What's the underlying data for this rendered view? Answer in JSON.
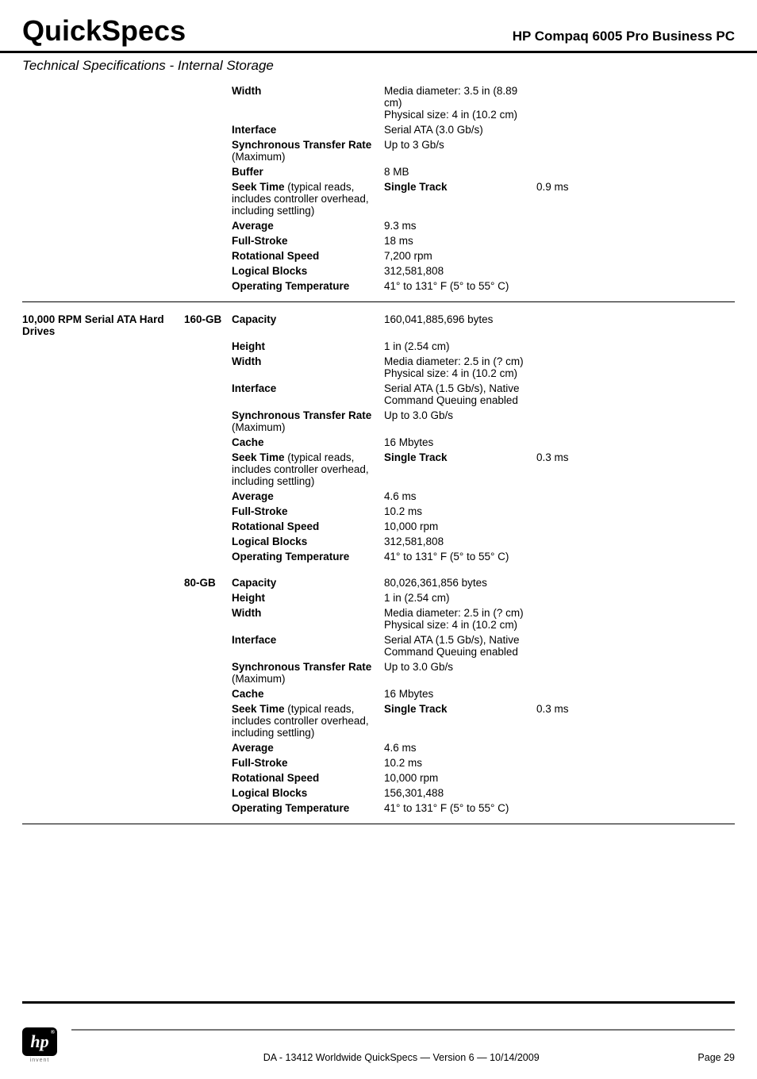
{
  "header": {
    "title": "QuickSpecs",
    "subtitle": "HP Compaq 6005 Pro Business PC"
  },
  "section_title": "Technical Specifications - Internal Storage",
  "drive1": {
    "width_label": "Width",
    "width_value": "Media diameter: 3.5 in (8.89 cm)\nPhysical size: 4 in (10.2 cm)",
    "interface_label": "Interface",
    "interface_value": "Serial ATA (3.0 Gb/s)",
    "sync_label": "Synchronous Transfer Rate",
    "sync_paren": " (Maximum)",
    "sync_value": "Up to 3 Gb/s",
    "buffer_label": "Buffer",
    "buffer_value": "8 MB",
    "seek_label": "Seek Time",
    "seek_paren": " (typical reads, includes controller overhead, including settling)",
    "seek_single": "Single Track",
    "seek_single_val": "0.9 ms",
    "seek_avg": "Average",
    "seek_avg_val": "9.3 ms",
    "seek_full": "Full-Stroke",
    "seek_full_val": "18 ms",
    "rot_label": "Rotational Speed",
    "rot_value": "7,200 rpm",
    "blocks_label": "Logical Blocks",
    "blocks_value": "312,581,808",
    "temp_label": "Operating Temperature",
    "temp_value": "41° to 131° F (5° to 55° C)"
  },
  "section2_name": "10,000 RPM Serial ATA Hard Drives",
  "drive2": {
    "size_label": "160-GB",
    "capacity_label": "Capacity",
    "capacity_value": "160,041,885,696 bytes",
    "height_label": "Height",
    "height_value": "1 in (2.54 cm)",
    "width_label": "Width",
    "width_value": "Media diameter: 2.5 in (? cm)\nPhysical size: 4 in (10.2 cm)",
    "interface_label": "Interface",
    "interface_value": "Serial ATA (1.5 Gb/s), Native Command Queuing enabled",
    "sync_label": "Synchronous Transfer Rate",
    "sync_paren": " (Maximum)",
    "sync_value": "Up to 3.0 Gb/s",
    "cache_label": "Cache",
    "cache_value": "16 Mbytes",
    "seek_label": "Seek Time",
    "seek_paren": " (typical reads, includes controller overhead, including settling)",
    "seek_single": "Single Track",
    "seek_single_val": "0.3 ms",
    "seek_avg": "Average",
    "seek_avg_val": "4.6 ms",
    "seek_full": "Full-Stroke",
    "seek_full_val": "10.2 ms",
    "rot_label": "Rotational Speed",
    "rot_value": "10,000 rpm",
    "blocks_label": "Logical Blocks",
    "blocks_value": "312,581,808",
    "temp_label": "Operating Temperature",
    "temp_value": "41° to 131° F (5° to 55° C)"
  },
  "drive3": {
    "size_label": "80-GB",
    "capacity_label": "Capacity",
    "capacity_value": "80,026,361,856 bytes",
    "height_label": "Height",
    "height_value": "1 in (2.54 cm)",
    "width_label": "Width",
    "width_value": "Media diameter: 2.5 in (? cm)\nPhysical size: 4 in (10.2 cm)",
    "interface_label": "Interface",
    "interface_value": "Serial ATA (1.5 Gb/s), Native Command Queuing enabled",
    "sync_label": "Synchronous Transfer Rate",
    "sync_paren": " (Maximum)",
    "sync_value": "Up to 3.0 Gb/s",
    "cache_label": "Cache",
    "cache_value": "16 Mbytes",
    "seek_label": "Seek Time",
    "seek_paren": " (typical reads, includes controller overhead, including settling)",
    "seek_single": "Single Track",
    "seek_single_val": "0.3 ms",
    "seek_avg": "Average",
    "seek_avg_val": "4.6 ms",
    "seek_full": "Full-Stroke",
    "seek_full_val": "10.2 ms",
    "rot_label": "Rotational Speed",
    "rot_value": "10,000 rpm",
    "blocks_label": "Logical Blocks",
    "blocks_value": "156,301,488",
    "temp_label": "Operating Temperature",
    "temp_value": "41° to 131° F (5° to 55° C)"
  },
  "footer": {
    "logo_text": "hp",
    "logo_sub": "invent",
    "center": "DA - 13412   Worldwide QuickSpecs — Version 6 — 10/14/2009",
    "right": "Page 29"
  }
}
